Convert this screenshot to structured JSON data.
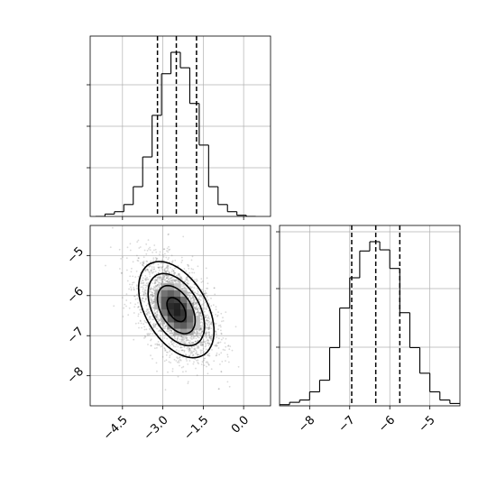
{
  "chart_data": [
    {
      "type": "histogram",
      "panel": "top-left",
      "parameter": 1,
      "xlim": [
        -5.7,
        1.0
      ],
      "bin_edges": [
        -5.5,
        -5.15,
        -4.8,
        -4.45,
        -4.1,
        -3.75,
        -3.4,
        -3.05,
        -2.7,
        -2.35,
        -2.0,
        -1.65,
        -1.3,
        -0.95,
        -0.6,
        -0.25,
        0.1,
        0.45
      ],
      "counts": [
        0,
        2,
        4,
        10,
        25,
        50,
        85,
        120,
        138,
        125,
        95,
        60,
        25,
        10,
        4,
        1,
        0
      ],
      "quantile_lines": [
        -3.2,
        -2.5,
        -1.75
      ],
      "grid": true,
      "ytick_labels_shown": false
    },
    {
      "type": "scatter",
      "subtype": "2d-density-contour",
      "panel": "bottom-left",
      "xlim": [
        -5.7,
        1.0
      ],
      "ylim": [
        -8.75,
        -4.25
      ],
      "xticks": [
        -4.5,
        -3.0,
        -1.5,
        0.0
      ],
      "xtick_labels": [
        "−4.5",
        "−3.0",
        "−1.5",
        "0.0"
      ],
      "yticks": [
        -8,
        -7,
        -6,
        -5
      ],
      "ytick_labels": [
        "−8",
        "−7",
        "−6",
        "−5"
      ],
      "center": [
        -2.5,
        -6.35
      ],
      "spread": [
        0.7,
        0.6
      ],
      "correlation": -0.45,
      "contour_levels_sigma": [
        0.5,
        1.0,
        1.5,
        2.0
      ],
      "grid": true
    },
    {
      "type": "histogram",
      "panel": "bottom-right",
      "parameter": 2,
      "xlim": [
        -8.75,
        -4.25
      ],
      "bin_edges": [
        -8.75,
        -8.5,
        -8.25,
        -8.0,
        -7.75,
        -7.5,
        -7.25,
        -7.0,
        -6.75,
        -6.5,
        -6.25,
        -6.0,
        -5.75,
        -5.5,
        -5.25,
        -5.0,
        -4.75,
        -4.5,
        -4.25
      ],
      "counts": [
        1,
        3,
        5,
        12,
        22,
        50,
        84,
        110,
        133,
        141,
        134,
        118,
        80,
        50,
        28,
        12,
        5,
        2
      ],
      "quantile_lines": [
        -6.95,
        -6.35,
        -5.75
      ],
      "xticks": [
        -8,
        -7,
        -6,
        -5
      ],
      "xtick_labels": [
        "−8",
        "−7",
        "−6",
        "−5"
      ],
      "grid": true,
      "ytick_labels_shown": false
    }
  ]
}
